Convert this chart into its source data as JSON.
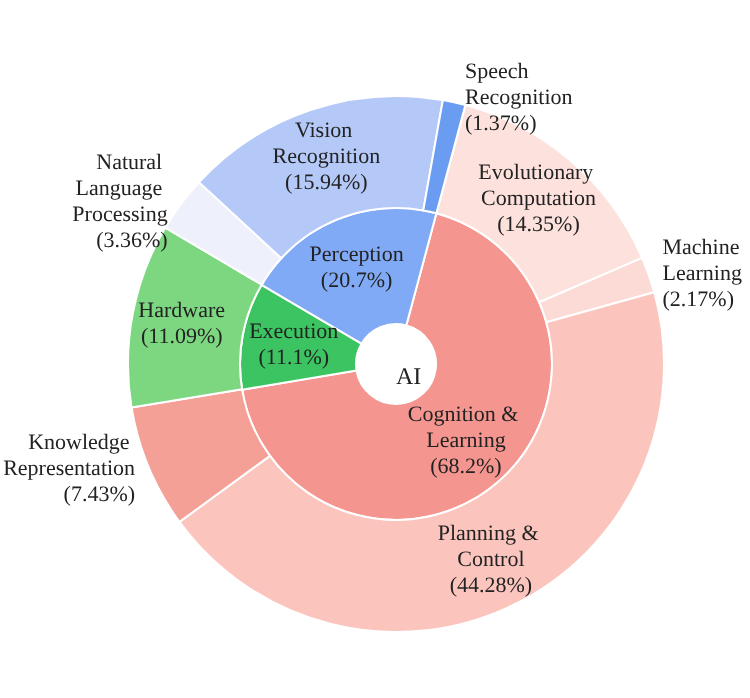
{
  "chart_data": [
    {
      "type": "donut",
      "categories": [
        "Cognition & Learning",
        "Execution",
        "Perception"
      ],
      "values": [
        68.2,
        11.1,
        20.7
      ],
      "value_labels": [
        "(68.2%)",
        "(11.1%)",
        "(20.7%)"
      ],
      "colors": [
        "#f4968f",
        "#3dc462",
        "#80a9f6"
      ],
      "annotations": [
        "AI"
      ]
    },
    {
      "type": "donut",
      "categories": [
        "Evolutionary Computation",
        "Machine Learning",
        "Planning & Control",
        "Knowledge Representation",
        "Hardware",
        "Natural Language Processing",
        "Vision Recognition",
        "Speech Recognition"
      ],
      "values": [
        14.35,
        2.17,
        44.28,
        7.43,
        11.09,
        3.36,
        15.94,
        1.37
      ],
      "value_labels": [
        "(14.35%)",
        "(2.17%)",
        "(44.28%)",
        "(7.43%)",
        "(11.09%)",
        "(3.36%)",
        "(15.94%)",
        "(1.37%)"
      ],
      "colors": [
        "#fde1dd",
        "#fcdad6",
        "#fbc5be",
        "#f4a097",
        "#7dd680",
        "#eef1fc",
        "#b4c9f8",
        "#6a9cf1"
      ]
    }
  ]
}
